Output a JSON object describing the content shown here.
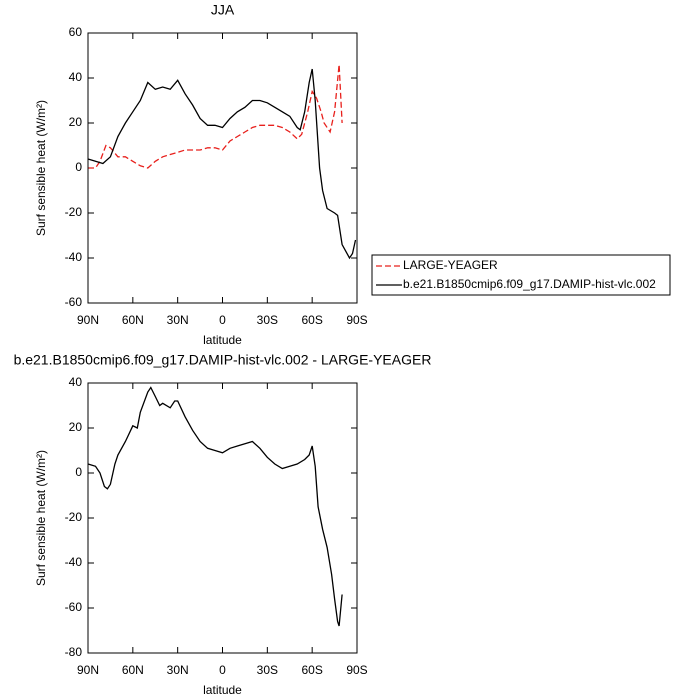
{
  "chart_data": [
    {
      "type": "line",
      "title": "JJA",
      "xlabel": "latitude",
      "ylabel": "Surf sensible heat (W/m²)",
      "xlim": [
        90,
        -90
      ],
      "ylim": [
        -60,
        60
      ],
      "xticks": [
        {
          "value": 90,
          "label": "90N"
        },
        {
          "value": 60,
          "label": "60N"
        },
        {
          "value": 30,
          "label": "30N"
        },
        0,
        {
          "value": -30,
          "label": "30S"
        },
        {
          "value": -60,
          "label": "60S"
        },
        {
          "value": -90,
          "label": "90S"
        }
      ],
      "yticks": [
        -60,
        -40,
        -20,
        0,
        20,
        40,
        60
      ],
      "legend": "right",
      "series": [
        {
          "name": "LARGE-YEAGER",
          "color": "#e8201c",
          "dashed": true,
          "x": [
            90,
            85,
            82,
            78,
            75,
            70,
            65,
            60,
            55,
            50,
            45,
            40,
            35,
            30,
            25,
            20,
            15,
            10,
            5,
            0,
            -5,
            -10,
            -15,
            -20,
            -25,
            -30,
            -35,
            -40,
            -45,
            -50,
            -53,
            -57,
            -60,
            -63,
            -66,
            -68,
            -72,
            -75,
            -78,
            -80
          ],
          "values": [
            0,
            0,
            3,
            10,
            9,
            5,
            5,
            3,
            1,
            0,
            3,
            5,
            6,
            7,
            8,
            8,
            8,
            9,
            9,
            8,
            12,
            14,
            16,
            18,
            19,
            19,
            19,
            18,
            16,
            13,
            15,
            25,
            34,
            31,
            25,
            20,
            16,
            25,
            46,
            20
          ]
        },
        {
          "name": "b.e21.B1850cmip6.f09_g17.DAMIP-hist-vlc.002",
          "color": "#000000",
          "dashed": false,
          "x": [
            90,
            85,
            80,
            75,
            70,
            65,
            60,
            55,
            50,
            45,
            40,
            35,
            30,
            25,
            20,
            15,
            10,
            5,
            0,
            -5,
            -10,
            -15,
            -20,
            -25,
            -30,
            -35,
            -40,
            -45,
            -50,
            -52,
            -55,
            -58,
            -60,
            -62,
            -65,
            -67,
            -70,
            -75,
            -77,
            -80,
            -85,
            -87,
            -89
          ],
          "values": [
            4,
            3,
            2,
            5,
            14,
            20,
            25,
            30,
            38,
            35,
            36,
            35,
            39,
            33,
            28,
            22,
            19,
            19,
            18,
            22,
            25,
            27,
            30,
            30,
            29,
            27,
            25,
            23,
            18,
            17,
            25,
            38,
            44,
            30,
            0,
            -10,
            -18,
            -20,
            -21,
            -34,
            -40,
            -38,
            -32
          ]
        }
      ]
    },
    {
      "type": "line",
      "title": "b.e21.B1850cmip6.f09_g17.DAMIP-hist-vlc.002 - LARGE-YEAGER",
      "xlabel": "latitude",
      "ylabel": "Surf sensible heat (W/m²)",
      "xlim": [
        90,
        -90
      ],
      "ylim": [
        -80,
        40
      ],
      "xticks": [
        {
          "value": 90,
          "label": "90N"
        },
        {
          "value": 60,
          "label": "60N"
        },
        {
          "value": 30,
          "label": "30N"
        },
        0,
        {
          "value": -30,
          "label": "30S"
        },
        {
          "value": -60,
          "label": "60S"
        },
        {
          "value": -90,
          "label": "90S"
        }
      ],
      "yticks": [
        -80,
        -60,
        -40,
        -20,
        0,
        20,
        40
      ],
      "series": [
        {
          "color": "#000000",
          "dashed": false,
          "x": [
            90,
            85,
            82,
            79,
            77,
            75,
            72,
            70,
            65,
            60,
            57,
            55,
            50,
            48,
            45,
            42,
            40,
            35,
            32,
            30,
            25,
            20,
            15,
            10,
            5,
            0,
            -5,
            -10,
            -15,
            -20,
            -25,
            -30,
            -35,
            -40,
            -45,
            -50,
            -55,
            -58,
            -60,
            -62,
            -64,
            -67,
            -70,
            -73,
            -75,
            -77,
            -78,
            -80
          ],
          "values": [
            4,
            3,
            0,
            -6,
            -7,
            -5,
            4,
            8,
            14,
            21,
            20,
            27,
            36,
            38,
            34,
            30,
            31,
            29,
            32,
            32,
            25,
            19,
            14,
            11,
            10,
            9,
            11,
            12,
            13,
            14,
            11,
            7,
            4,
            2,
            3,
            4,
            6,
            8,
            12,
            3,
            -15,
            -25,
            -33,
            -45,
            -56,
            -66,
            -68,
            -54
          ]
        }
      ]
    }
  ]
}
